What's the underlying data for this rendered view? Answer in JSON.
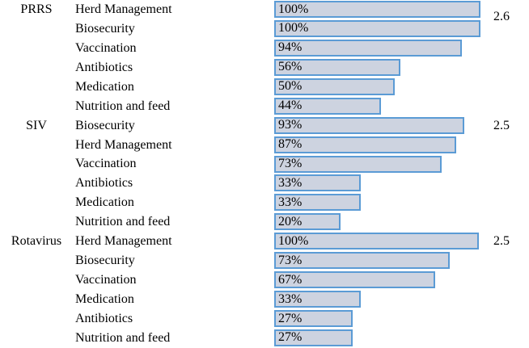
{
  "chart_data": {
    "type": "bar",
    "orientation": "horizontal",
    "title": "",
    "xlabel": "",
    "ylabel": "",
    "grid": false,
    "legend": false,
    "bar_value_label_position": "inside-left",
    "group_score_label_position": "right-of-first-bar-in-group",
    "colors": {
      "bar_fill": "#cdd3e0",
      "bar_border": "#5b9bd5",
      "text": "#000000"
    },
    "groups": [
      {
        "name": "PRRS",
        "score": "2.6"
      },
      {
        "name": "SIV",
        "score": "2.5"
      },
      {
        "name": "Rotavirus",
        "score": "2.5"
      }
    ],
    "rows": [
      {
        "group": "PRRS",
        "practice": "Herd Management",
        "value_pct": 100,
        "label": "100%",
        "score": "2.6",
        "bar_frac": 1.0
      },
      {
        "group": "",
        "practice": "Biosecurity",
        "value_pct": 100,
        "label": "100%",
        "score": "",
        "bar_frac": 1.0
      },
      {
        "group": "",
        "practice": "Vaccination",
        "value_pct": 94,
        "label": "94%",
        "score": "",
        "bar_frac": 0.91
      },
      {
        "group": "",
        "practice": "Antibiotics",
        "value_pct": 56,
        "label": "56%",
        "score": "",
        "bar_frac": 0.612
      },
      {
        "group": "",
        "practice": "Medication",
        "value_pct": 50,
        "label": "50%",
        "score": "",
        "bar_frac": 0.584
      },
      {
        "group": "",
        "practice": "Nutrition and feed",
        "value_pct": 44,
        "label": "44%",
        "score": "",
        "bar_frac": 0.518
      },
      {
        "group": "SIV",
        "practice": "Biosecurity",
        "value_pct": 93,
        "label": "93%",
        "score": "2.5",
        "bar_frac": 0.922
      },
      {
        "group": "",
        "practice": "Herd Management",
        "value_pct": 87,
        "label": "87%",
        "score": "",
        "bar_frac": 0.882
      },
      {
        "group": "",
        "practice": "Vaccination",
        "value_pct": 73,
        "label": "73%",
        "score": "",
        "bar_frac": 0.812
      },
      {
        "group": "",
        "practice": "Antibiotics",
        "value_pct": 33,
        "label": "33%",
        "score": "",
        "bar_frac": 0.42
      },
      {
        "group": "",
        "practice": "Medication",
        "value_pct": 33,
        "label": "33%",
        "score": "",
        "bar_frac": 0.42
      },
      {
        "group": "",
        "practice": "Nutrition and feed",
        "value_pct": 20,
        "label": "20%",
        "score": "",
        "bar_frac": 0.322
      },
      {
        "group": "Rotavirus",
        "practice": "Herd Management",
        "value_pct": 100,
        "label": "100%",
        "score": "2.5",
        "bar_frac": 0.992
      },
      {
        "group": "",
        "practice": "Biosecurity",
        "value_pct": 73,
        "label": "73%",
        "score": "",
        "bar_frac": 0.851
      },
      {
        "group": "",
        "practice": "Vaccination",
        "value_pct": 67,
        "label": "67%",
        "score": "",
        "bar_frac": 0.78
      },
      {
        "group": "",
        "practice": "Medication",
        "value_pct": 33,
        "label": "33%",
        "score": "",
        "bar_frac": 0.42
      },
      {
        "group": "",
        "practice": "Antibiotics",
        "value_pct": 27,
        "label": "27%",
        "score": "",
        "bar_frac": 0.381
      },
      {
        "group": "",
        "practice": "Nutrition and feed",
        "value_pct": 27,
        "label": "27%",
        "score": "",
        "bar_frac": 0.381
      }
    ]
  }
}
